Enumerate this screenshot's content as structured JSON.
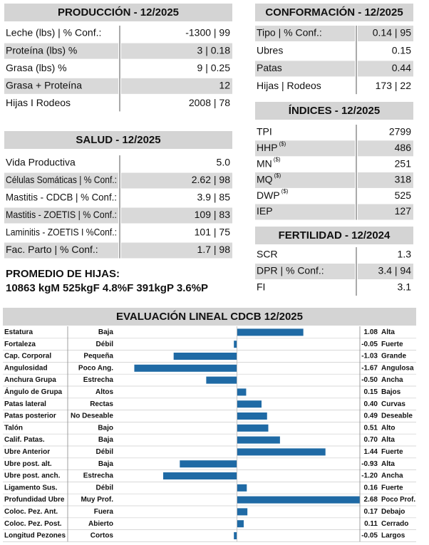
{
  "sections": [
    {
      "title": "PRODUCCIÓN - 12/2025",
      "rows": [
        {
          "label": "Leche (lbs) | % Conf.:",
          "value": "-1300 | 99"
        },
        {
          "label": "Proteína (lbs) %",
          "value": "3 | 0.18"
        },
        {
          "label": "Grasa (lbs) %",
          "value": "9 | 0.25"
        },
        {
          "label": "Grasa + Proteína",
          "value": "12"
        },
        {
          "label": "Hijas I Rodeos",
          "value": "2008 | 78"
        }
      ]
    },
    {
      "title": "SALUD - 12/2025",
      "rows": [
        {
          "label": "Vida Productiva",
          "value": "5.0"
        },
        {
          "label": "Células Somáticas | % Conf.:",
          "value": "2.62 | 98"
        },
        {
          "label": "Mastitis - CDCB | % Conf.:",
          "value": "3.9 | 85"
        },
        {
          "label": "Mastitis - ZOETIS | % Conf.:",
          "value": "109 | 83"
        },
        {
          "label": "Laminitis - ZOETIS I %Conf.:",
          "value": "101 | 75"
        },
        {
          "label": "Fac. Parto | % Conf.:",
          "value": "1.7 | 98"
        }
      ]
    },
    {
      "title": "CONFORMACIÓN - 12/2025",
      "rows": [
        {
          "label": "Tipo | % Conf.:",
          "value": "0.14 | 95"
        },
        {
          "label": "Ubres",
          "value": "0.15"
        },
        {
          "label": "Patas",
          "value": "0.44"
        },
        {
          "label": "Hijas | Rodeos",
          "value": "173 | 22"
        }
      ]
    },
    {
      "title": "ÍNDICES - 12/2025",
      "rows": [
        {
          "label": "TPI",
          "value": "2799"
        },
        {
          "label": "HHP",
          "sup": "($)",
          "value": "486"
        },
        {
          "label": "MN",
          "sup": "($)",
          "value": "251"
        },
        {
          "label": "MQ",
          "sup": "($)",
          "value": "318"
        },
        {
          "label": "DWP",
          "sup": "($)",
          "value": "525"
        },
        {
          "label": "IEP",
          "value": "127"
        }
      ]
    },
    {
      "title": "FERTILIDAD - 12/2024",
      "rows": [
        {
          "label": "SCR",
          "value": "1.3"
        },
        {
          "label": "DPR | % Conf.:",
          "value": "3.4 | 94"
        },
        {
          "label": "FI",
          "value": "3.1"
        }
      ]
    }
  ],
  "promedio": {
    "title": "PROMEDIO DE HIJAS:",
    "text": "10863 kgM 525kgF 4.8%F 391kgP 3.6%P"
  },
  "chart_data": {
    "type": "bar",
    "title": "EVALUACIÓN LINEAL CDCB 12/2025",
    "color": "#1f6aa5",
    "xlim": [
      -2,
      2
    ],
    "categories": [
      "Estatura",
      "Fortaleza",
      "Cap. Corporal",
      "Angulosidad",
      "Anchura Grupa",
      "Ángulo de Grupa",
      "Patas lateral",
      "Patas posterior",
      "Talón",
      "Calif. Patas.",
      "Ubre Anterior",
      "Ubre post. alt.",
      "Ubre post. anch.",
      "Ligamento Sus.",
      "Profundidad Ubre",
      "Coloc. Pez. Ant.",
      "Coloc. Pez. Post.",
      "Longitud Pezones"
    ],
    "low_labels": [
      "Baja",
      "Débil",
      "Pequeña",
      "Poco Ang.",
      "Estrecha",
      "Altos",
      "Rectas",
      "No Deseable",
      "Bajo",
      "Baja",
      "Débil",
      "Baja",
      "Estrecha",
      "Débil",
      "Muy Prof.",
      "Fuera",
      "Abierto",
      "Cortos"
    ],
    "high_labels": [
      "Alta",
      "Fuerte",
      "Grande",
      "Angulosa",
      "Ancha",
      "Bajos",
      "Curvas",
      "Deseable",
      "Alto",
      "Alta",
      "Fuerte",
      "Alta",
      "Ancha",
      "Fuerte",
      "Poco Prof.",
      "Debajo",
      "Cerrado",
      "Largos"
    ],
    "values": [
      1.08,
      -0.05,
      -1.03,
      -1.67,
      -0.5,
      0.15,
      0.4,
      0.49,
      0.51,
      0.7,
      1.44,
      -0.93,
      -1.2,
      0.16,
      2.68,
      0.17,
      0.11,
      -0.05
    ],
    "value_labels": [
      "1.08",
      "-0.05",
      "-1.03",
      "-1.67",
      "-0.50",
      "0.15",
      "0.40",
      "0.49",
      "0.51",
      "0.70",
      "1.44",
      "-0.93",
      "-1.20",
      "0.16",
      "2.68",
      "0.17",
      "0.11",
      "-0.05"
    ]
  }
}
